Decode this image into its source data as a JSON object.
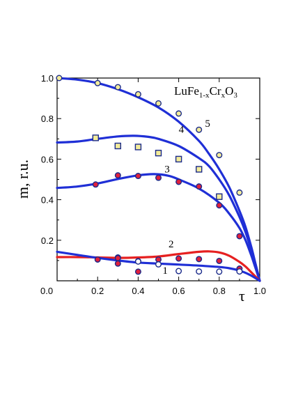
{
  "chart_data": {
    "type": "line",
    "title_parts": {
      "a": "LuFe",
      "b": "1-x",
      "c": "Cr",
      "d": "x",
      "e": "O",
      "f": "3"
    },
    "xlabel": "τ",
    "ylabel": "m, r.u.",
    "xlim": [
      0.0,
      1.0
    ],
    "ylim": [
      0.0,
      1.0
    ],
    "x_ticks": [
      "0.0",
      "0.2",
      "0.4",
      "0.6",
      "0.8",
      "1.0"
    ],
    "y_ticks": [
      "0.2",
      "0.4",
      "0.6",
      "0.8",
      "1.0"
    ],
    "grid": false,
    "curves": [
      {
        "label": "5",
        "color": "#1f2fd6",
        "points": [
          [
            0,
            1.0
          ],
          [
            0.1,
            0.992
          ],
          [
            0.2,
            0.975
          ],
          [
            0.3,
            0.945
          ],
          [
            0.4,
            0.905
          ],
          [
            0.5,
            0.855
          ],
          [
            0.6,
            0.785
          ],
          [
            0.7,
            0.69
          ],
          [
            0.75,
            0.625
          ],
          [
            0.8,
            0.55
          ],
          [
            0.85,
            0.46
          ],
          [
            0.9,
            0.345
          ],
          [
            0.93,
            0.265
          ],
          [
            0.96,
            0.16
          ],
          [
            0.98,
            0.08
          ],
          [
            1.0,
            0.0
          ]
        ]
      },
      {
        "label": "4",
        "color": "#1f2fd6",
        "points": [
          [
            0,
            0.682
          ],
          [
            0.1,
            0.687
          ],
          [
            0.2,
            0.7
          ],
          [
            0.3,
            0.712
          ],
          [
            0.38,
            0.715
          ],
          [
            0.45,
            0.71
          ],
          [
            0.5,
            0.7
          ],
          [
            0.6,
            0.665
          ],
          [
            0.7,
            0.605
          ],
          [
            0.75,
            0.565
          ],
          [
            0.8,
            0.5
          ],
          [
            0.85,
            0.42
          ],
          [
            0.9,
            0.315
          ],
          [
            0.93,
            0.24
          ],
          [
            0.96,
            0.145
          ],
          [
            0.98,
            0.075
          ],
          [
            1.0,
            0.0
          ]
        ]
      },
      {
        "label": "3",
        "color": "#1f2fd6",
        "points": [
          [
            0,
            0.458
          ],
          [
            0.1,
            0.465
          ],
          [
            0.2,
            0.48
          ],
          [
            0.3,
            0.502
          ],
          [
            0.4,
            0.52
          ],
          [
            0.48,
            0.526
          ],
          [
            0.55,
            0.518
          ],
          [
            0.6,
            0.5
          ],
          [
            0.7,
            0.455
          ],
          [
            0.8,
            0.385
          ],
          [
            0.85,
            0.33
          ],
          [
            0.9,
            0.26
          ],
          [
            0.93,
            0.2
          ],
          [
            0.96,
            0.12
          ],
          [
            0.98,
            0.06
          ],
          [
            1.0,
            0.0
          ]
        ]
      },
      {
        "label": "2",
        "color": "#e62020",
        "points": [
          [
            0,
            0.117
          ],
          [
            0.1,
            0.117
          ],
          [
            0.2,
            0.115
          ],
          [
            0.3,
            0.113
          ],
          [
            0.4,
            0.115
          ],
          [
            0.5,
            0.12
          ],
          [
            0.6,
            0.132
          ],
          [
            0.7,
            0.143
          ],
          [
            0.75,
            0.145
          ],
          [
            0.8,
            0.14
          ],
          [
            0.85,
            0.123
          ],
          [
            0.9,
            0.093
          ],
          [
            0.93,
            0.07
          ],
          [
            0.96,
            0.04
          ],
          [
            0.98,
            0.02
          ],
          [
            1.0,
            0.0
          ]
        ]
      },
      {
        "label": "1",
        "color": "#1f2fd6",
        "points": [
          [
            0,
            0.143
          ],
          [
            0.1,
            0.128
          ],
          [
            0.2,
            0.113
          ],
          [
            0.3,
            0.1
          ],
          [
            0.4,
            0.09
          ],
          [
            0.5,
            0.085
          ],
          [
            0.6,
            0.08
          ],
          [
            0.7,
            0.075
          ],
          [
            0.8,
            0.068
          ],
          [
            0.85,
            0.062
          ],
          [
            0.9,
            0.05
          ],
          [
            0.95,
            0.03
          ],
          [
            1.0,
            0.0
          ]
        ]
      }
    ],
    "markers": [
      {
        "shape": "circle",
        "fill": "#f3ec9a",
        "points": [
          [
            0.01,
            1.0
          ],
          [
            0.2,
            0.975
          ],
          [
            0.3,
            0.955
          ],
          [
            0.4,
            0.92
          ],
          [
            0.5,
            0.875
          ],
          [
            0.6,
            0.825
          ],
          [
            0.7,
            0.745
          ],
          [
            0.8,
            0.62
          ],
          [
            0.9,
            0.435
          ]
        ]
      },
      {
        "shape": "square",
        "fill": "#f3ec9a",
        "points": [
          [
            0.19,
            0.705
          ],
          [
            0.3,
            0.665
          ],
          [
            0.4,
            0.66
          ],
          [
            0.5,
            0.63
          ],
          [
            0.6,
            0.6
          ],
          [
            0.7,
            0.55
          ],
          [
            0.8,
            0.415
          ]
        ]
      },
      {
        "shape": "circle",
        "fill": "#e0203c",
        "points": [
          [
            0.19,
            0.475
          ],
          [
            0.3,
            0.52
          ],
          [
            0.4,
            0.517
          ],
          [
            0.5,
            0.508
          ],
          [
            0.6,
            0.488
          ],
          [
            0.7,
            0.465
          ],
          [
            0.8,
            0.372
          ],
          [
            0.9,
            0.22
          ]
        ]
      },
      {
        "shape": "circle",
        "fill": "#e0203c",
        "points": [
          [
            0.2,
            0.105
          ],
          [
            0.3,
            0.085
          ],
          [
            0.4,
            0.097
          ],
          [
            0.5,
            0.105
          ],
          [
            0.6,
            0.11
          ],
          [
            0.7,
            0.107
          ],
          [
            0.8,
            0.098
          ],
          [
            0.9,
            0.06
          ]
        ]
      },
      {
        "shape": "circle",
        "fill": "#ffffff",
        "points": [
          [
            0.3,
            0.115
          ],
          [
            0.4,
            0.095
          ],
          [
            0.5,
            0.081
          ],
          [
            0.6,
            0.048
          ],
          [
            0.7,
            0.046
          ],
          [
            0.8,
            0.045
          ],
          [
            0.9,
            0.046
          ]
        ]
      },
      {
        "shape": "circle",
        "fill": "#e0203c",
        "points": [
          [
            0.3,
            0.112
          ],
          [
            0.4,
            0.045
          ]
        ]
      }
    ]
  }
}
